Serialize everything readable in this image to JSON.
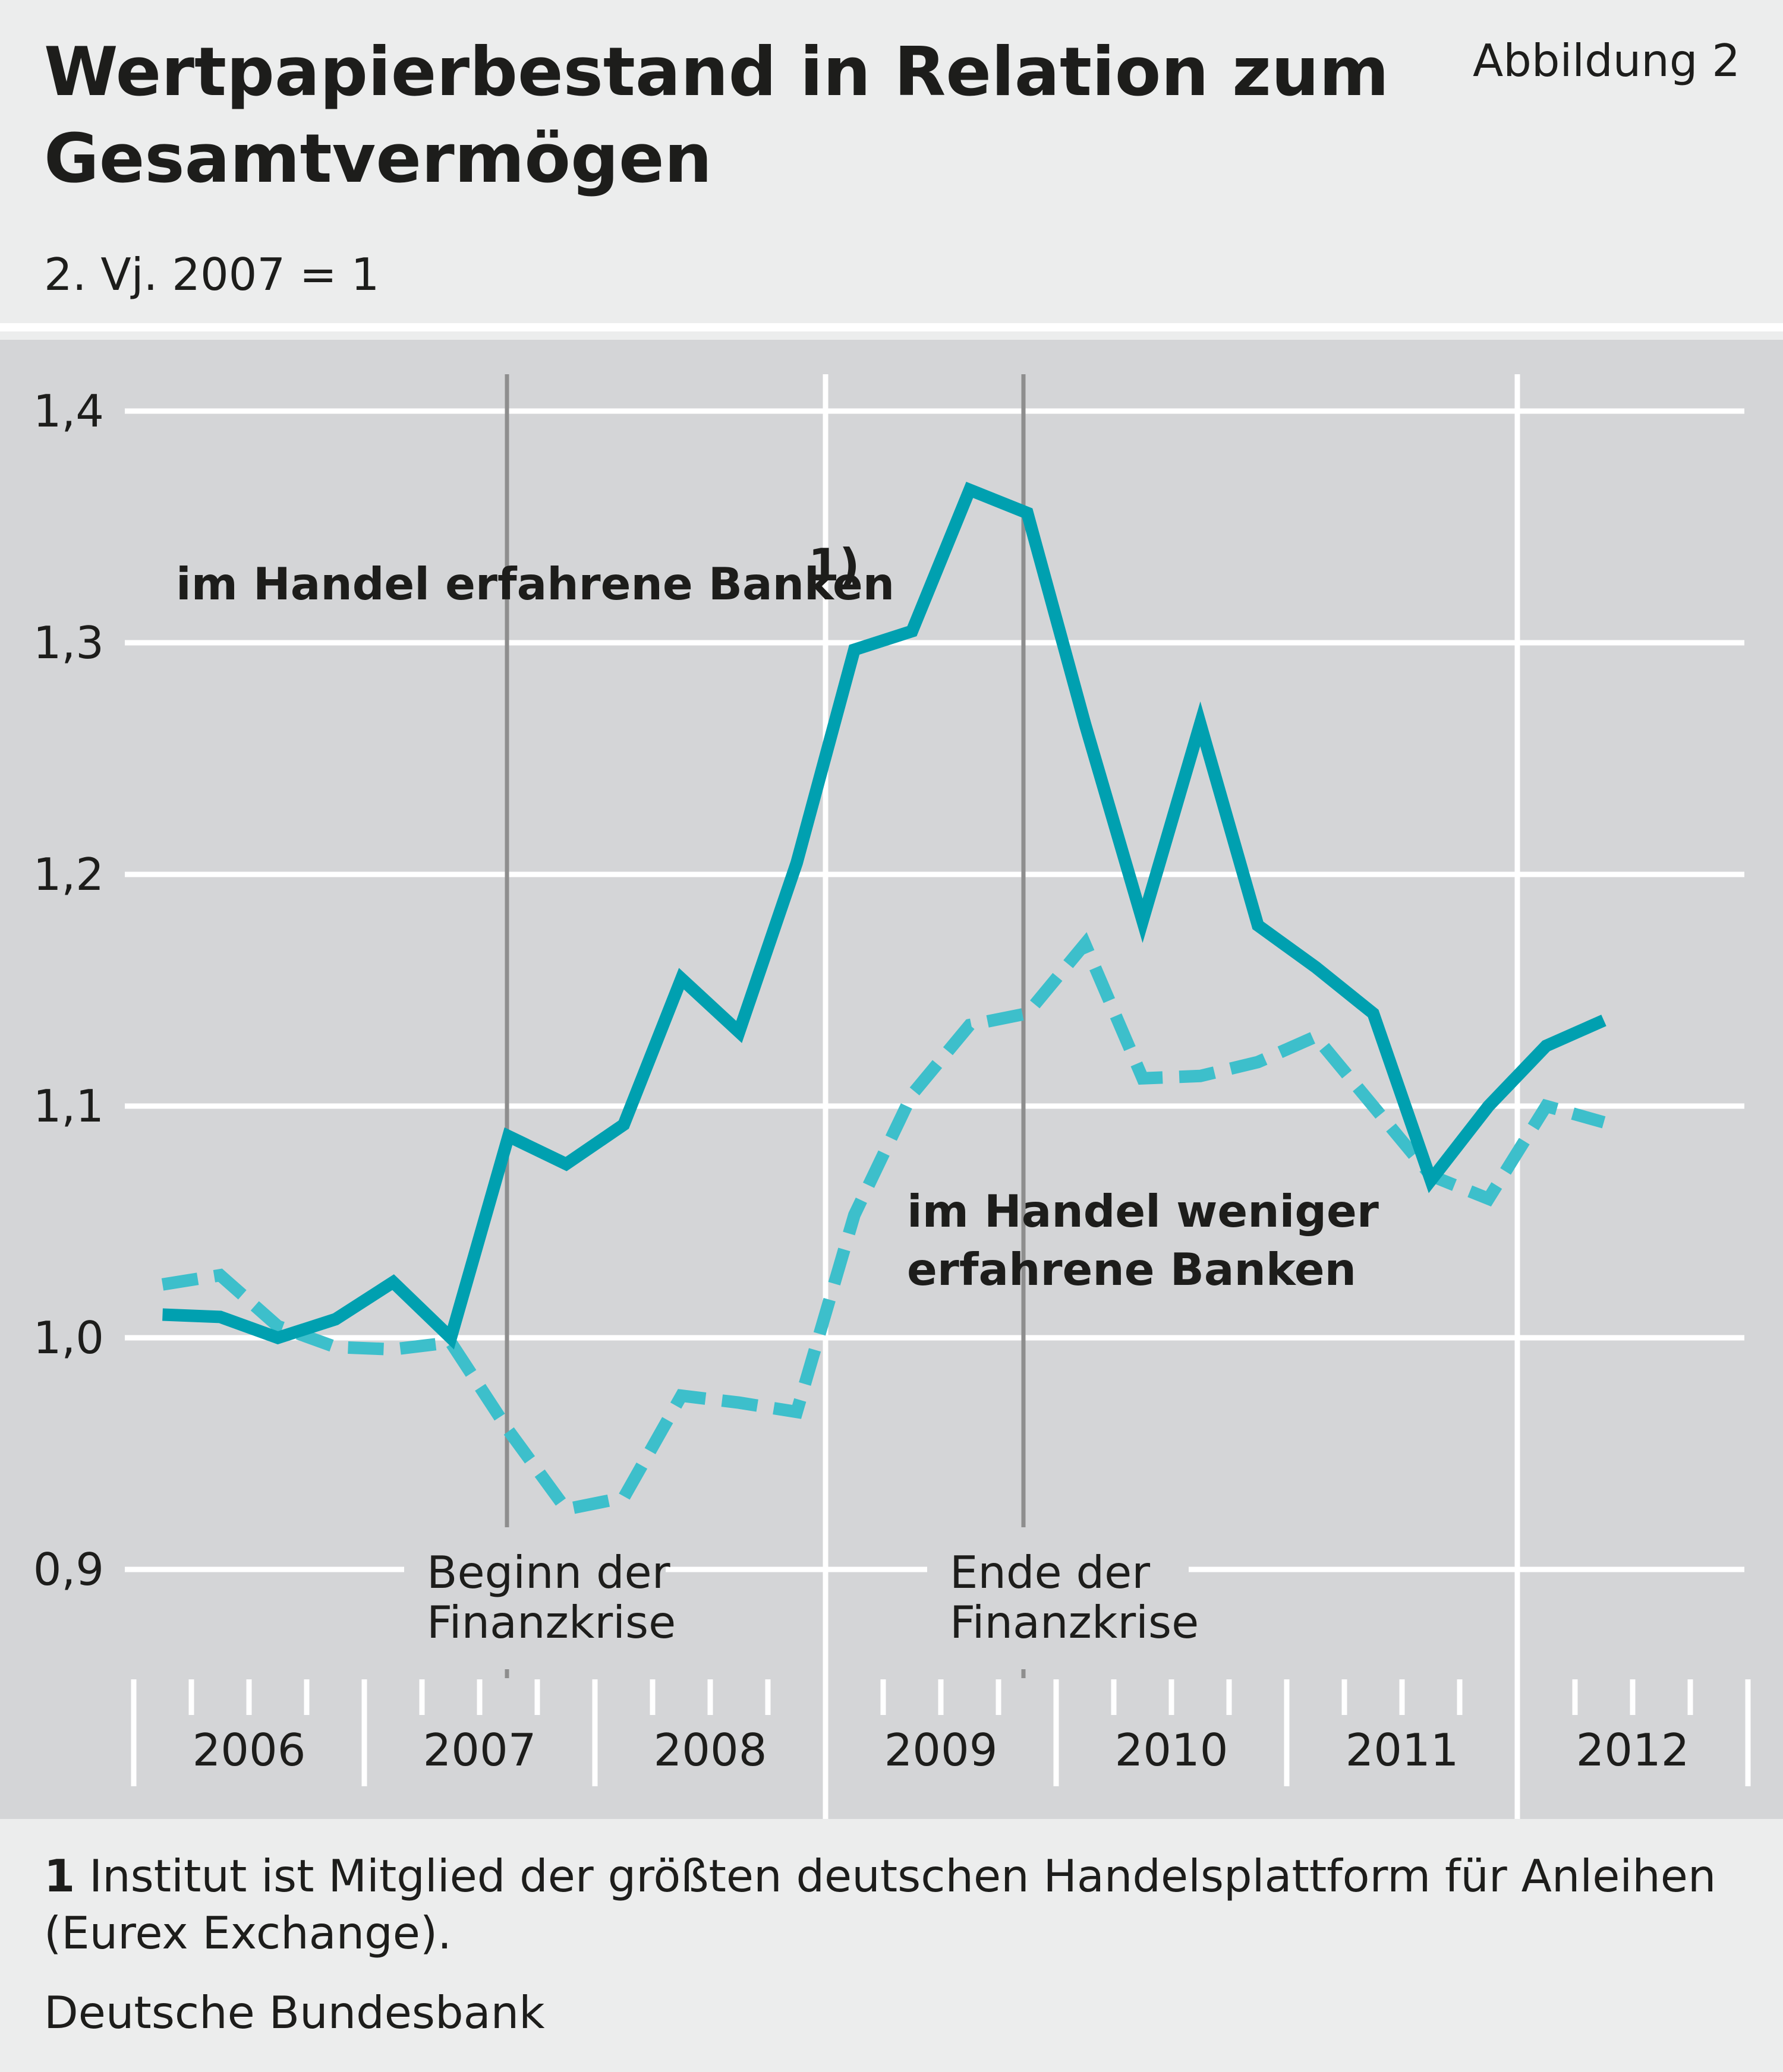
{
  "header": {
    "title": "Wertpapierbestand in Relation zum Gesamtvermögen",
    "figure_label": "Abbildung 2",
    "subtitle": "2. Vj. 2007 = 1"
  },
  "chart_data": {
    "type": "line",
    "title": "Wertpapierbestand in Relation zum Gesamtvermögen",
    "subtitle": "2. Vj. 2007 = 1",
    "ylim": [
      0.9,
      1.4
    ],
    "y_ticks": [
      "1,4",
      "1,3",
      "1,2",
      "1,1",
      "1,0",
      "0,9"
    ],
    "y_tick_values": [
      1.4,
      1.3,
      1.2,
      1.1,
      1.0,
      0.9
    ],
    "x_axis": {
      "years": [
        "2006",
        "2007",
        "2008",
        "2009",
        "2010",
        "2011",
        "2012"
      ],
      "quarters": [
        "2006 Q1",
        "2006 Q2",
        "2006 Q3",
        "2006 Q4",
        "2007 Q1",
        "2007 Q2",
        "2007 Q3",
        "2007 Q4",
        "2008 Q1",
        "2008 Q2",
        "2008 Q3",
        "2008 Q4",
        "2009 Q1",
        "2009 Q2",
        "2009 Q3",
        "2009 Q4",
        "2010 Q1",
        "2010 Q2",
        "2010 Q3",
        "2010 Q4",
        "2011 Q1",
        "2011 Q2",
        "2011 Q3",
        "2011 Q4",
        "2012 Q1",
        "2012 Q2"
      ]
    },
    "grid": true,
    "series": [
      {
        "name": "im Handel erfahrene Banken",
        "name_sup": "1)",
        "style": "solid",
        "color": "#00a0b0",
        "values": [
          1.01,
          1.009,
          1.0,
          1.008,
          1.024,
          1.0,
          1.087,
          1.075,
          1.092,
          1.155,
          1.132,
          1.205,
          1.297,
          1.305,
          1.366,
          1.356,
          1.265,
          1.18,
          1.265,
          1.178,
          1.16,
          1.14,
          1.068,
          1.1,
          1.126,
          1.137
        ]
      },
      {
        "name": "im Handel weniger erfahrene Banken",
        "style": "dashed",
        "color": "#3dbfcb",
        "values": [
          1.023,
          1.027,
          1.005,
          0.996,
          0.995,
          0.998,
          0.96,
          0.926,
          0.931,
          0.975,
          0.972,
          0.968,
          1.053,
          1.105,
          1.135,
          1.14,
          1.17,
          1.112,
          1.113,
          1.119,
          1.13,
          1.1,
          1.07,
          1.06,
          1.1,
          1.093
        ]
      }
    ],
    "annotations": [
      {
        "x": "2007 Q2/Q3",
        "lines": [
          "Beginn der",
          "Finanzkrise"
        ]
      },
      {
        "x": "2009 Q2/Q3",
        "lines": [
          "Ende der",
          "Finanzkrise"
        ]
      }
    ],
    "series_label_lines": [
      [
        "im Handel erfahrene Banken"
      ],
      [
        "im Handel weniger",
        "erfahrene Banken"
      ]
    ]
  },
  "footnote": {
    "number": "1",
    "text": "Institut ist Mitglied der größten deutschen Handelsplattform für Anleihen (Eurex Exchange)."
  },
  "source": "Deutsche Bundesbank"
}
